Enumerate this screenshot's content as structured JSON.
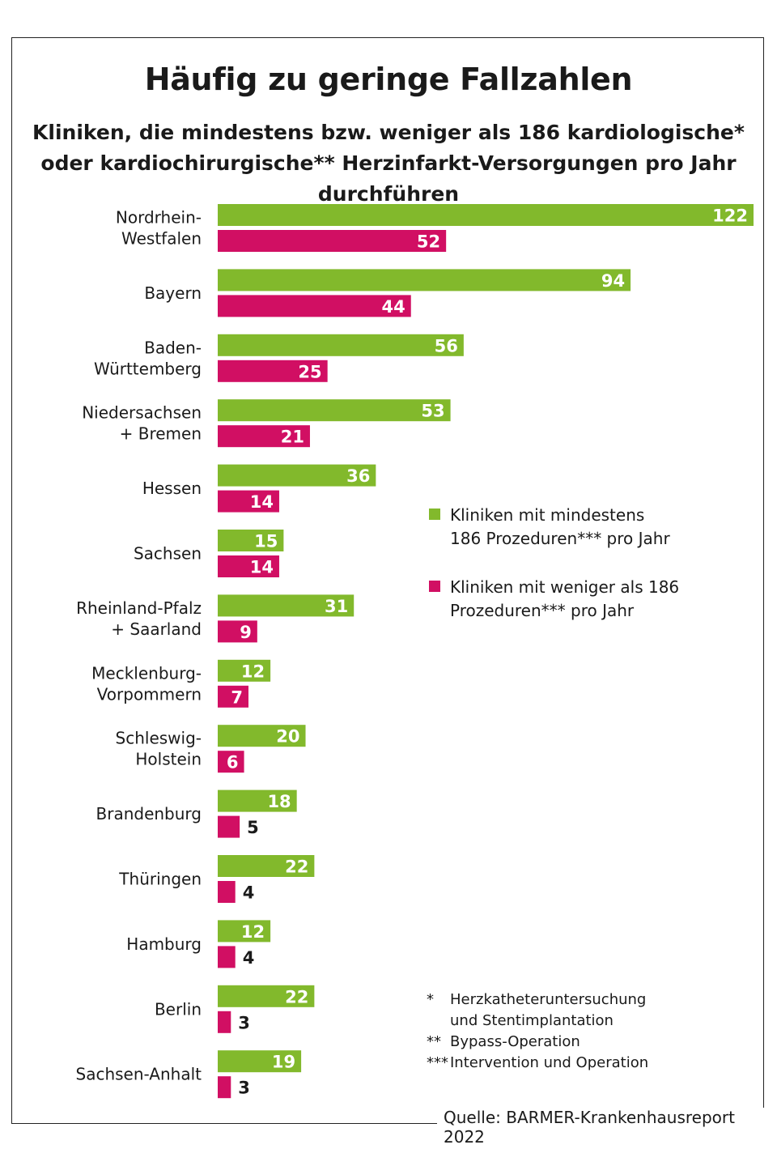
{
  "title": "Häufig zu geringe Fallzahlen",
  "subtitle": "Kliniken, die mindestens bzw. weniger als 186 kardiologische* oder kardiochirurgische** Herzinfarkt-Versorgungen pro Jahr durchführen",
  "legend": [
    {
      "text": "Kliniken mit mindestens\n186 Prozeduren*** pro Jahr",
      "color": "#82b92c"
    },
    {
      "text": "Kliniken mit weniger als 186\nProzeduren*** pro Jahr",
      "color": "#d10f63"
    }
  ],
  "footnotes": [
    {
      "marker": "*",
      "text": "Herzkatheteruntersuchung\nund Stentimplantation"
    },
    {
      "marker": "**",
      "text": "Bypass-Operation"
    },
    {
      "marker": "***",
      "text": "Intervention und Operation"
    }
  ],
  "source": "Quelle: BARMER-Krankenhausreport 2022",
  "chart_data": {
    "type": "bar",
    "orientation": "horizontal",
    "title": "Häufig zu geringe Fallzahlen",
    "categories": [
      [
        "Nordrhein-",
        "Westfalen"
      ],
      [
        "Bayern"
      ],
      [
        "Baden-",
        "Württemberg"
      ],
      [
        "Niedersachsen",
        "+ Bremen"
      ],
      [
        "Hessen"
      ],
      [
        "Sachsen"
      ],
      [
        "Rheinland-Pfalz",
        "+ Saarland"
      ],
      [
        "Mecklenburg-",
        "Vorpommern"
      ],
      [
        "Schleswig-",
        "Holstein"
      ],
      [
        "Brandenburg"
      ],
      [
        "Thüringen"
      ],
      [
        "Hamburg"
      ],
      [
        "Berlin"
      ],
      [
        "Sachsen-Anhalt"
      ]
    ],
    "series": [
      {
        "name": "Kliniken mit mindestens 186 Prozeduren*** pro Jahr",
        "color": "#82b92c",
        "values": [
          122,
          94,
          56,
          53,
          36,
          15,
          31,
          12,
          20,
          18,
          22,
          12,
          22,
          19
        ]
      },
      {
        "name": "Kliniken mit weniger als 186 Prozeduren*** pro Jahr",
        "color": "#d10f63",
        "values": [
          52,
          44,
          25,
          21,
          14,
          14,
          9,
          7,
          6,
          5,
          4,
          4,
          3,
          3
        ]
      }
    ],
    "xlim": [
      0,
      122
    ],
    "data_labels": true,
    "grid": false,
    "legend_position": "right"
  }
}
